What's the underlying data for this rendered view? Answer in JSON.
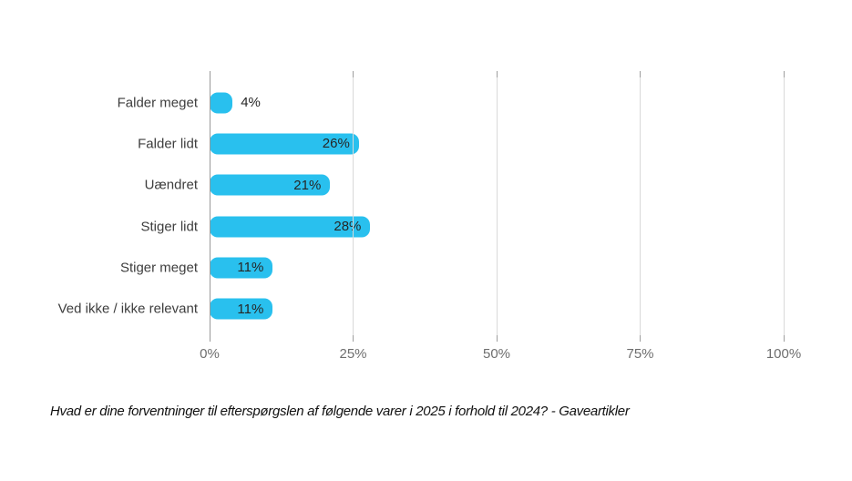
{
  "chart_data": {
    "type": "bar",
    "orientation": "horizontal",
    "title": "",
    "categories": [
      "Falder meget",
      "Falder lidt",
      "Uændret",
      "Stiger lidt",
      "Stiger meget",
      "Ved ikke / ikke relevant"
    ],
    "values": [
      4,
      26,
      21,
      28,
      11,
      11
    ],
    "value_labels": [
      "4%",
      "26%",
      "21%",
      "28%",
      "11%",
      "11%"
    ],
    "x_ticks": [
      "0%",
      "25%",
      "50%",
      "75%",
      "100%"
    ],
    "xlim": [
      0,
      100
    ],
    "grid": true,
    "legend": "none",
    "caption": "Hvad er dine forventninger til efterspørgslen af følgende varer i 2025 i forhold til 2024? - Gaveartikler",
    "colors": {
      "bar": "#29c0ee",
      "gridline": "#d9d9d9",
      "axis_line": "#999999",
      "tick_label": "#6e6e6e",
      "category_label": "#3d3d3d",
      "value_label": "#262626",
      "caption": "#111111",
      "background": "#ffffff"
    }
  }
}
